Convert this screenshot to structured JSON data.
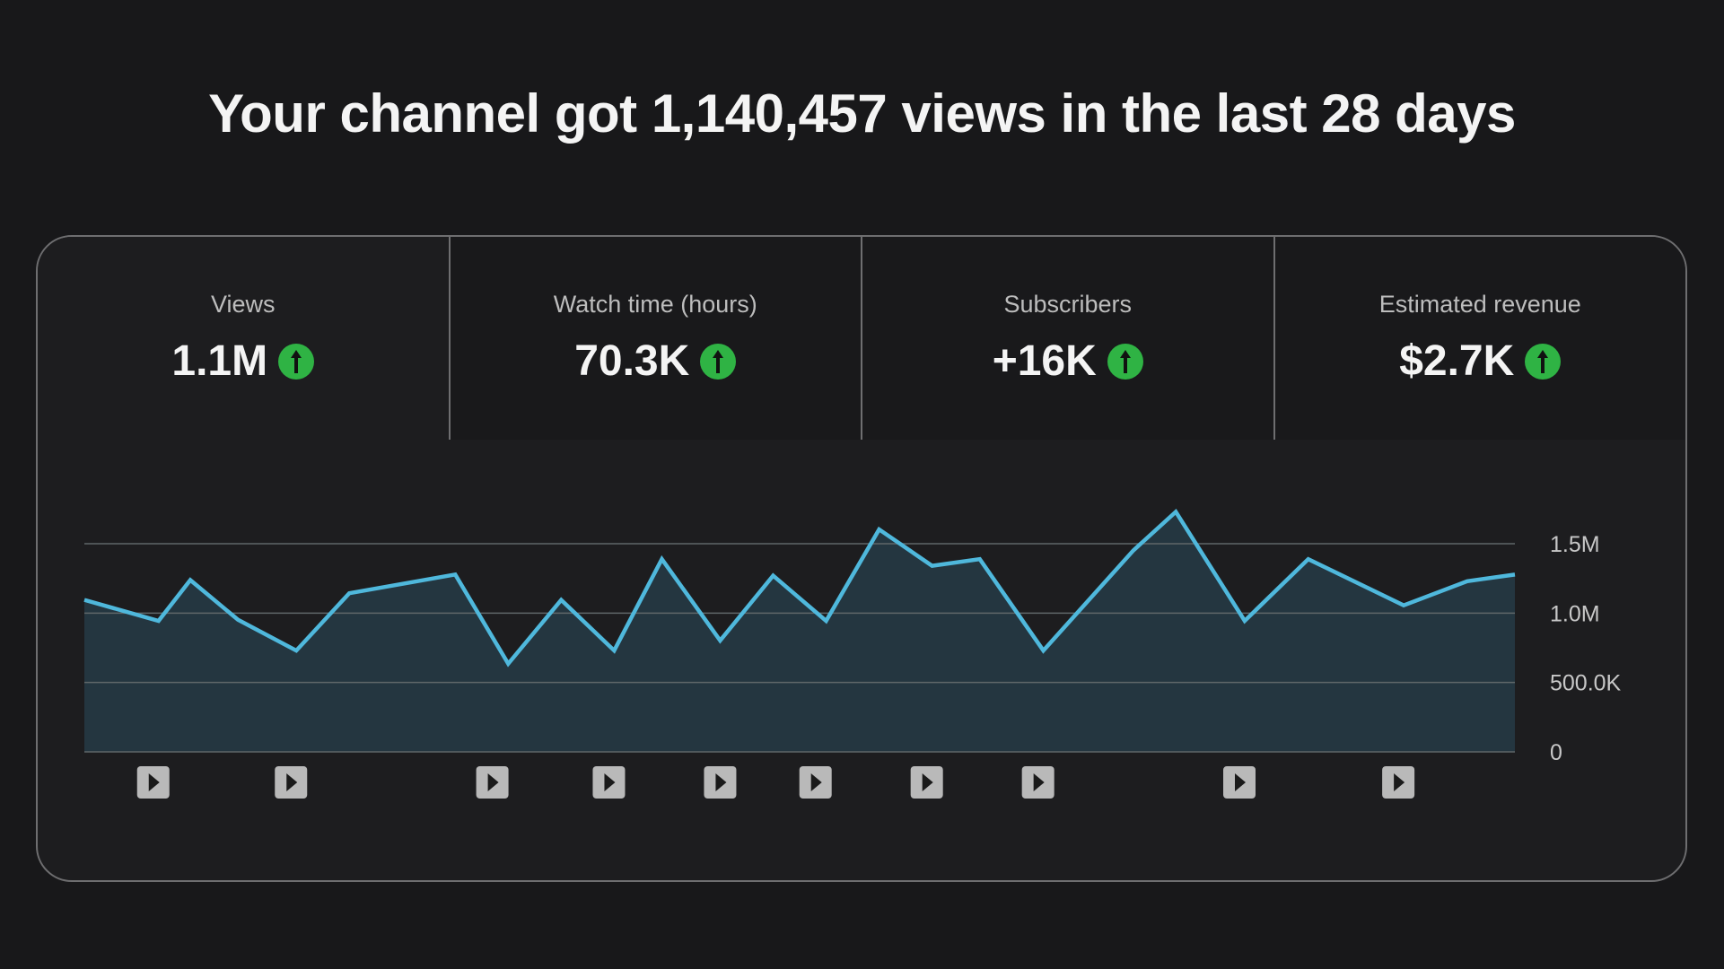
{
  "title": "Your channel got 1,140,457 views in the last 28 days",
  "tabs": [
    {
      "label": "Views",
      "value": "1.1M",
      "trend": "up",
      "selected": true
    },
    {
      "label": "Watch time (hours)",
      "value": "70.3K",
      "trend": "up",
      "selected": false
    },
    {
      "label": "Subscribers",
      "value": "+16K",
      "trend": "up",
      "selected": false
    },
    {
      "label": "Estimated revenue",
      "value": "$2.7K",
      "trend": "up",
      "selected": false
    }
  ],
  "colors": {
    "line": "#4fb8dc",
    "area": "#243640",
    "trend_up": "#2fb344",
    "background": "#18181a"
  },
  "chart_data": {
    "type": "area",
    "title": "",
    "xlabel": "",
    "ylabel": "",
    "x": [
      0,
      1.4,
      2.0,
      2.9,
      4.0,
      5.0,
      7.0,
      8.0,
      9.0,
      10.0,
      10.9,
      12.0,
      13.0,
      14.0,
      15.0,
      16.0,
      16.9,
      18.1,
      19.8,
      20.6,
      21.9,
      23.1,
      24.9,
      26.1,
      27.0
    ],
    "values": [
      1095000,
      944000,
      1238000,
      952000,
      730000,
      1143000,
      1278000,
      635000,
      1095000,
      730000,
      1389000,
      802000,
      1270000,
      944000,
      1603000,
      1341000,
      1389000,
      730000,
      1452000,
      1730000,
      944000,
      1389000,
      1056000,
      1230000,
      1278000
    ],
    "xlim": [
      0,
      27
    ],
    "ylim": [
      0,
      1500000
    ],
    "yticks": [
      0,
      500000,
      1000000,
      1500000
    ],
    "ytick_labels": [
      "0",
      "500.0K",
      "1.0M",
      "1.5M"
    ],
    "grid": true,
    "y_axis_position": "right",
    "video_markers": [
      1.3,
      3.9,
      7.7,
      9.9,
      12.0,
      13.8,
      15.9,
      18.0,
      21.8,
      24.8
    ],
    "video_marker_icon": "play-icon"
  }
}
